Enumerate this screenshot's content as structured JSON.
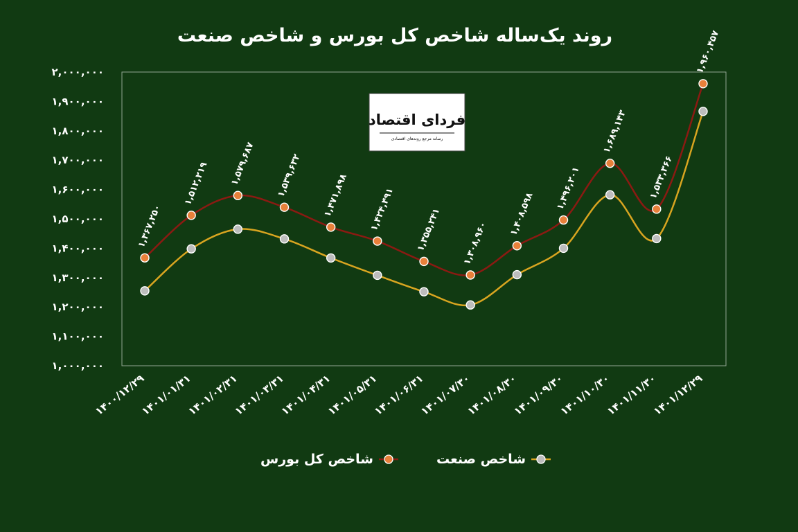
{
  "title": "روند یک‌ساله شاخص کل بورس و شاخص صنعت",
  "logo": {
    "text": "فردای اقتصاد",
    "tagline": "رسانه مرجع روندهای اقتصادی"
  },
  "colors": {
    "background": "#113a12",
    "total_line": "#8b1a12",
    "total_marker": "#e8803a",
    "industry_line": "#d9a520",
    "industry_marker": "#bdbdbd",
    "text": "#ffffff"
  },
  "legend": [
    {
      "name": "شاخص کل بورس",
      "color": "#8b1a12",
      "marker": "#e8803a"
    },
    {
      "name": "شاخص صنعت",
      "color": "#d9a520",
      "marker": "#bdbdbd"
    }
  ],
  "chart_data": {
    "type": "line",
    "title": "روند یک‌ساله شاخص کل بورس و شاخص صنعت",
    "categories": [
      "۱۴۰۰/۱۲/۲۹",
      "۱۴۰۱/۰۱/۳۱",
      "۱۴۰۱/۰۲/۳۱",
      "۱۴۰۱/۰۳/۳۱",
      "۱۴۰۱/۰۴/۳۱",
      "۱۴۰۱/۰۵/۳۱",
      "۱۴۰۱/۰۶/۳۱",
      "۱۴۰۱/۰۷/۳۰",
      "۱۴۰۱/۰۸/۳۰",
      "۱۴۰۱/۰۹/۳۰",
      "۱۴۰۱/۱۰/۳۰",
      "۱۴۰۱/۱۱/۳۰",
      "۱۴۰۱/۱۲/۲۹"
    ],
    "ylim": [
      1000000,
      2000000
    ],
    "yticks": [
      1000000,
      1100000,
      1200000,
      1300000,
      1400000,
      1500000,
      1600000,
      1700000,
      1800000,
      1900000,
      2000000
    ],
    "ytick_labels": [
      "۱,۰۰۰,۰۰۰",
      "۱,۱۰۰,۰۰۰",
      "۱,۲۰۰,۰۰۰",
      "۱,۳۰۰,۰۰۰",
      "۱,۴۰۰,۰۰۰",
      "۱,۵۰۰,۰۰۰",
      "۱,۶۰۰,۰۰۰",
      "۱,۷۰۰,۰۰۰",
      "۱,۸۰۰,۰۰۰",
      "۱,۹۰۰,۰۰۰",
      "۲,۰۰۰,۰۰۰"
    ],
    "grid": false,
    "legend_position": "bottom",
    "series": [
      {
        "name": "شاخص کل بورس",
        "values": [
          1367250,
          1512219,
          1579687,
          1539632,
          1471898,
          1424491,
          1355241,
          1308960,
          1408598,
          1496201,
          1689143,
          1533366,
          1960457
        ],
        "labels": [
          "۱,۳۶۷,۲۵۰",
          "۱,۵۱۲,۲۱۹",
          "۱,۵۷۹,۶۸۷",
          "۱,۵۳۹,۶۳۲",
          "۱,۴۷۱,۸۹۸",
          "۱,۴۲۴,۴۹۱",
          "۱,۳۵۵,۲۴۱",
          "۱,۳۰۸,۹۶۰",
          "۱,۴۰۸,۵۹۸",
          "۱,۴۹۶,۲۰۱",
          "۱,۶۸۹,۱۴۳",
          "۱,۵۳۳,۳۶۶",
          "۱,۹۶۰,۴۵۷"
        ]
      },
      {
        "name": "شاخص صنعت",
        "values": [
          1255000,
          1398000,
          1465000,
          1432000,
          1367000,
          1308000,
          1252000,
          1207000,
          1310000,
          1400000,
          1582000,
          1433000,
          1866000
        ]
      }
    ]
  }
}
